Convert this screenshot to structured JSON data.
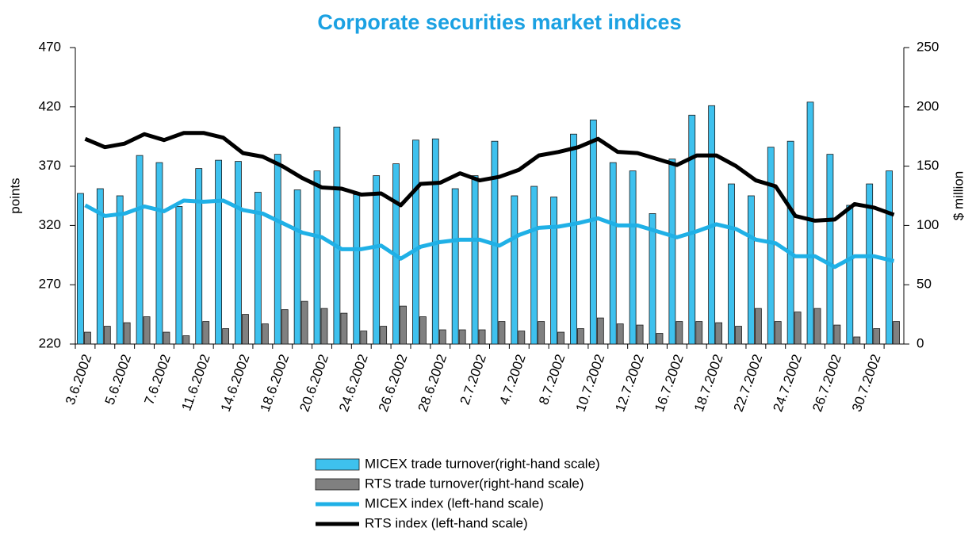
{
  "chart_data": {
    "type": "bar",
    "title": "Corporate securities market indices",
    "ylabel": "points",
    "y2label": "$ million",
    "categories": [
      "3.6.2002",
      null,
      "5.6.2002",
      null,
      "7.6.2002",
      null,
      "11.6.2002",
      null,
      "14.6.2002",
      null,
      "18.6.2002",
      null,
      "20.6.2002",
      null,
      "24.6.2002",
      null,
      "26.6.2002",
      null,
      "28.6.2002",
      null,
      "2.7.2002",
      null,
      "4.7.2002",
      null,
      "8.7.2002",
      null,
      "10.7.2002",
      null,
      "12.7.2002",
      null,
      "16.7.2002",
      null,
      "18.7.2002",
      null,
      "22.7.2002",
      null,
      "24.7.2002",
      null,
      "26.7.2002",
      null,
      "30.7.2002",
      null
    ],
    "ylim": [
      220,
      470
    ],
    "yticks": [
      220,
      270,
      320,
      370,
      420,
      470
    ],
    "y2lim": [
      0,
      250
    ],
    "y2ticks": [
      0,
      50,
      100,
      150,
      200,
      250
    ],
    "series": [
      {
        "name": "MICEX trade turnover(right-hand scale)",
        "type": "bar",
        "axis": "y2",
        "color": "#3ec1ee",
        "values": [
          127,
          131,
          125,
          159,
          153,
          116,
          148,
          155,
          154,
          128,
          160,
          130,
          146,
          183,
          126,
          142,
          152,
          172,
          173,
          131,
          142,
          171,
          125,
          133,
          124,
          177,
          189,
          153,
          146,
          110,
          156,
          193,
          201,
          135,
          125,
          166,
          171,
          204,
          160,
          117,
          135,
          146
        ]
      },
      {
        "name": "RTS trade turnover(right-hand scale)",
        "type": "bar",
        "axis": "y2",
        "color": "#808080",
        "values": [
          10,
          15,
          18,
          23,
          10,
          7,
          19,
          13,
          25,
          17,
          29,
          36,
          30,
          26,
          11,
          15,
          32,
          23,
          12,
          12,
          12,
          19,
          11,
          19,
          10,
          13,
          22,
          17,
          16,
          9,
          19,
          19,
          18,
          15,
          30,
          19,
          27,
          30,
          16,
          6,
          13,
          19
        ]
      },
      {
        "name": "MICEX index (left-hand scale)",
        "type": "line",
        "color": "#1fb0e6",
        "values": [
          337,
          328,
          330,
          336,
          332,
          341,
          340,
          341,
          333,
          330,
          322,
          314,
          310,
          300,
          300,
          303,
          292,
          302,
          306,
          308,
          308,
          303,
          312,
          318,
          319,
          322,
          326,
          320,
          320,
          315,
          310,
          315,
          321,
          317,
          308,
          305,
          294,
          294,
          285,
          294,
          294,
          290
        ]
      },
      {
        "name": "RTS index (left-hand scale)",
        "type": "line",
        "color": "#000000",
        "values": [
          393,
          386,
          389,
          397,
          392,
          398,
          398,
          394,
          381,
          378,
          370,
          360,
          352,
          351,
          346,
          347,
          337,
          355,
          356,
          364,
          358,
          361,
          367,
          379,
          382,
          386,
          393,
          382,
          381,
          376,
          371,
          379,
          379,
          370,
          358,
          353,
          328,
          324,
          325,
          338,
          335,
          329
        ]
      }
    ]
  }
}
